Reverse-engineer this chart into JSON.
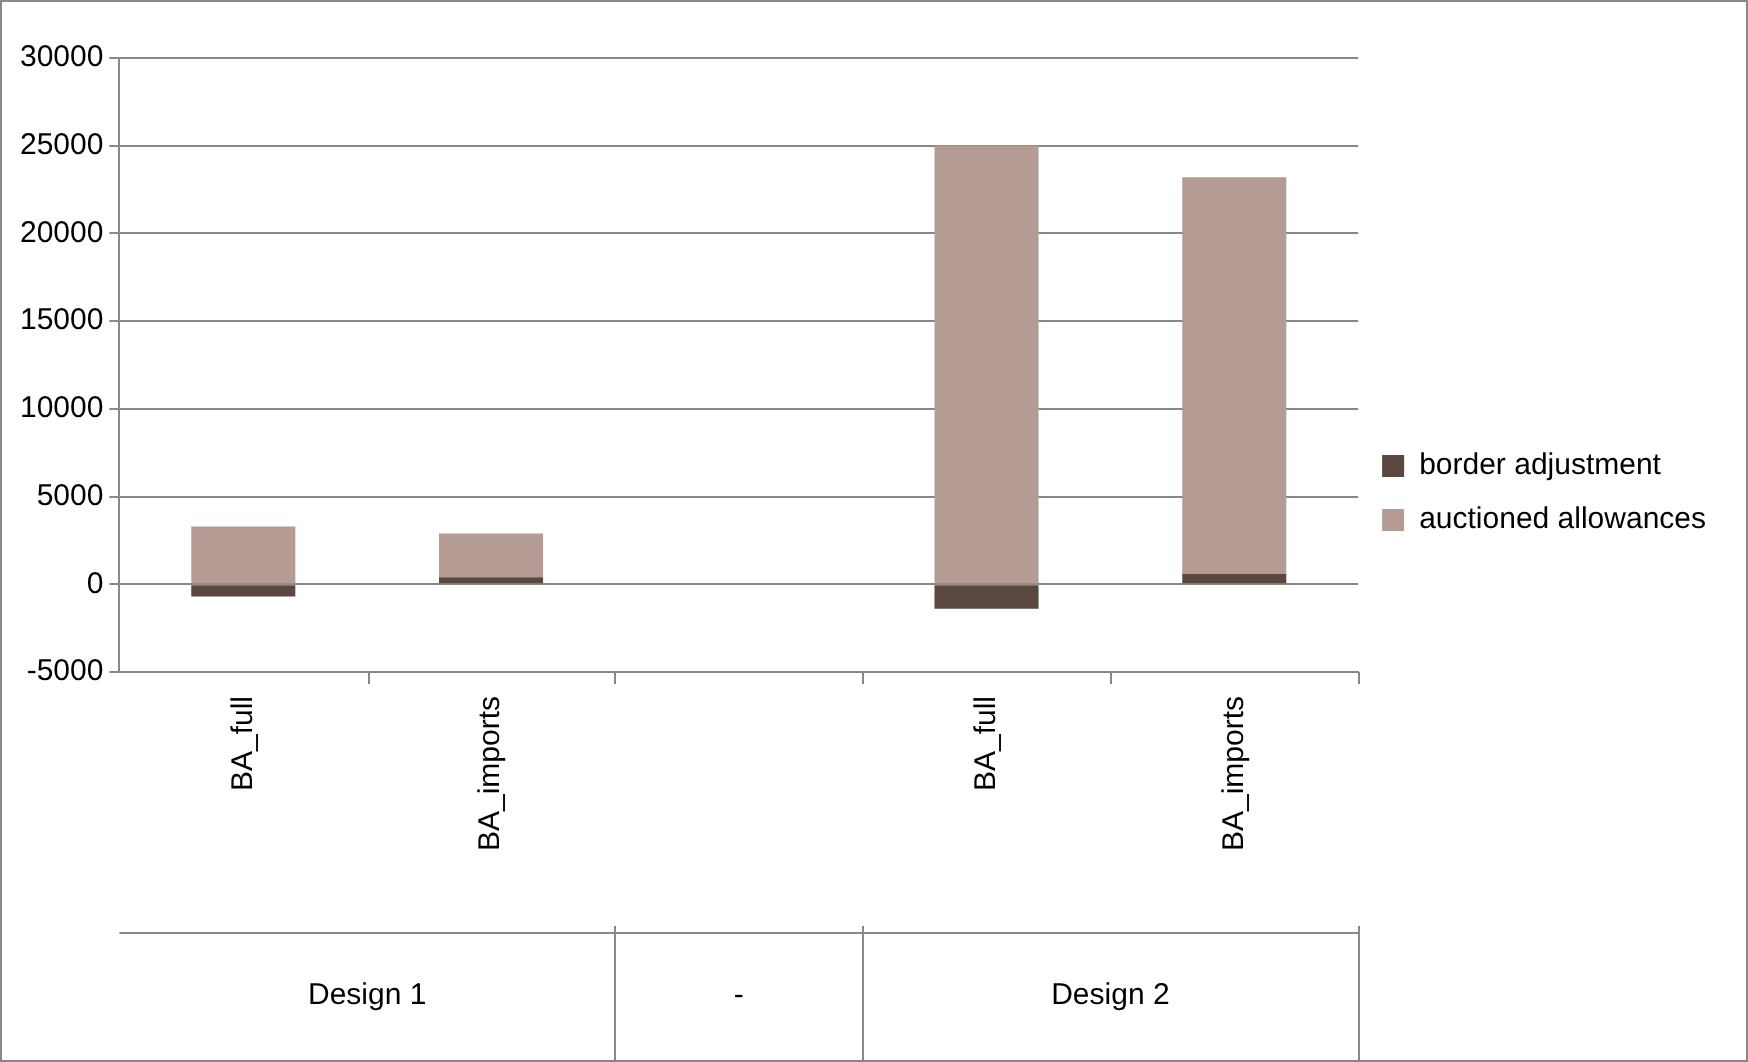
{
  "chart_data": {
    "type": "bar",
    "stacked": true,
    "categories": [
      "BA_full",
      "BA_imports",
      null,
      "BA_full",
      "BA_imports"
    ],
    "series": [
      {
        "name": "border adjustment",
        "color": "#5a4740",
        "values": [
          -700,
          400,
          null,
          -1400,
          600
        ]
      },
      {
        "name": "auctioned allowances",
        "color": "#b49c94",
        "values": [
          3300,
          2500,
          null,
          25000,
          22600
        ]
      }
    ],
    "ylim": [
      -5000,
      30000
    ],
    "yticks": [
      -5000,
      0,
      5000,
      10000,
      15000,
      20000,
      25000,
      30000
    ],
    "grid": "y",
    "legend": "right",
    "annotations": [
      "Design 1",
      "-",
      "Design 2"
    ]
  }
}
